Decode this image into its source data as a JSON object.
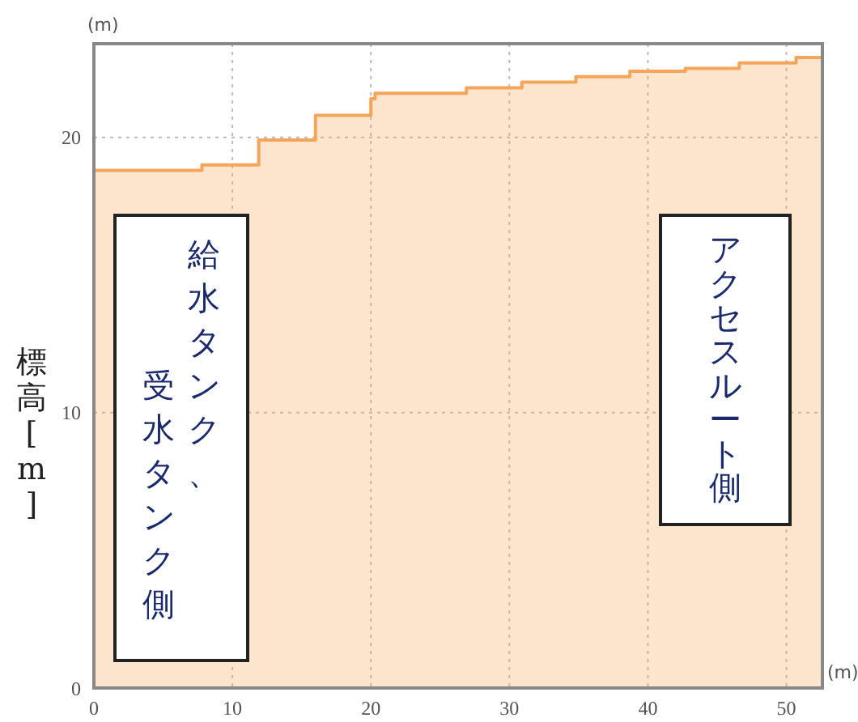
{
  "chart_data": {
    "type": "step",
    "ylabel": "標高[m]",
    "xlabel": "(m)",
    "annotations": [
      "(m)",
      "給水タンク、受水タンク側",
      "アクセスルート側"
    ],
    "x": [
      0,
      7.8,
      11.9,
      16.0,
      20.0,
      20.3,
      26.9,
      30.9,
      34.8,
      38.7,
      42.7,
      46.6,
      50.7,
      52.6
    ],
    "series": [
      {
        "color": "#f5a55a",
        "values": [
          18.8,
          19.0,
          19.9,
          20.8,
          21.4,
          21.6,
          21.8,
          22.0,
          22.2,
          22.4,
          22.5,
          22.7,
          22.9,
          22.9
        ]
      }
    ],
    "xlim": [
      0,
      52.6
    ],
    "ylim": [
      0,
      23.4
    ],
    "xticks": [
      0,
      10,
      20,
      30,
      40,
      50
    ],
    "yticks": [
      0,
      10,
      20
    ],
    "grid": true,
    "legend": false
  }
}
